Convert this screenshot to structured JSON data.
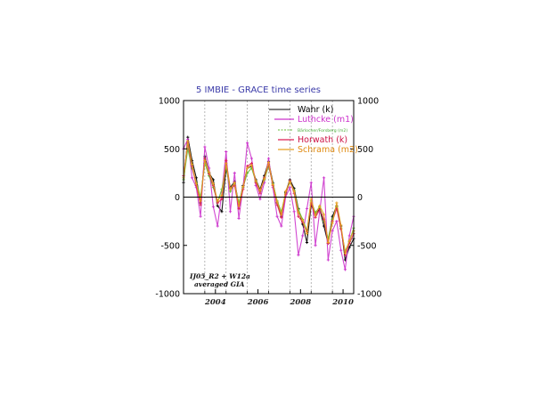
{
  "chart_data": {
    "type": "line",
    "title": "5 IMBIE - GRACE time series",
    "xlabel": "",
    "ylabel": "",
    "xlim": [
      2003.0,
      2011.0
    ],
    "ylim": [
      -1000,
      1000
    ],
    "x_ticks": [
      "2004",
      "2006",
      "2008",
      "2010"
    ],
    "y_ticks_left": [
      "1000",
      "500",
      "0",
      "-500",
      "-1000"
    ],
    "y_ticks_right": [
      "1000",
      "500",
      "0",
      "-500",
      "-1000"
    ],
    "grid": "vertical dashed lines at year boundaries",
    "legend_position": "top-right",
    "annotation": [
      "IJ05_R2 + W12a",
      "averaged GIA"
    ],
    "x": [
      2003.0,
      2003.2,
      2003.4,
      2003.6,
      2003.8,
      2004.0,
      2004.2,
      2004.4,
      2004.6,
      2004.8,
      2005.0,
      2005.2,
      2005.4,
      2005.6,
      2005.8,
      2006.0,
      2006.2,
      2006.4,
      2006.6,
      2006.8,
      2007.0,
      2007.2,
      2007.4,
      2007.6,
      2007.8,
      2008.0,
      2008.2,
      2008.4,
      2008.6,
      2008.8,
      2009.0,
      2009.2,
      2009.4,
      2009.6,
      2009.8,
      2010.0,
      2010.2,
      2010.4,
      2010.6,
      2010.8,
      2011.0
    ],
    "series": [
      {
        "name": "Wahr (k)",
        "color": "#000000",
        "values": [
          150,
          620,
          380,
          200,
          -60,
          420,
          250,
          180,
          -90,
          -150,
          300,
          100,
          160,
          -80,
          120,
          300,
          320,
          180,
          80,
          220,
          370,
          150,
          -60,
          -200,
          50,
          180,
          90,
          -120,
          -280,
          -470,
          -80,
          -180,
          -120,
          -300,
          -480,
          -200,
          -90,
          -300,
          -650,
          -520,
          -430
        ]
      },
      {
        "name": "Luthcke (m1)",
        "color": "#cc33cc",
        "values": [
          500,
          600,
          200,
          100,
          -200,
          520,
          300,
          -100,
          -300,
          50,
          470,
          -150,
          250,
          -220,
          100,
          560,
          400,
          120,
          -20,
          150,
          400,
          100,
          -200,
          -300,
          0,
          100,
          -150,
          -600,
          -400,
          -120,
          150,
          -500,
          -150,
          200,
          -650,
          -350,
          -250,
          -550,
          -750,
          -400,
          -200
        ]
      },
      {
        "name": "Bärlocher/Forsberg (m2)",
        "color": "#66bb33",
        "values": [
          180,
          500,
          300,
          150,
          0,
          350,
          220,
          100,
          -50,
          80,
          320,
          60,
          140,
          -60,
          100,
          250,
          300,
          160,
          60,
          180,
          320,
          140,
          -40,
          -150,
          40,
          150,
          70,
          -130,
          -230,
          -350,
          -40,
          -160,
          -100,
          -250,
          -430,
          -230,
          -100,
          -320,
          -560,
          -460,
          -320
        ]
      },
      {
        "name": "Horwath (k)",
        "color": "#dd2255",
        "values": [
          220,
          560,
          320,
          120,
          -80,
          400,
          240,
          120,
          -60,
          -20,
          380,
          90,
          120,
          -120,
          80,
          320,
          350,
          150,
          40,
          200,
          340,
          120,
          -80,
          -210,
          30,
          170,
          40,
          -200,
          -260,
          -360,
          -60,
          -210,
          -130,
          -230,
          -480,
          -250,
          -120,
          -330,
          -600,
          -480,
          -380
        ]
      },
      {
        "name": "Schrama (m2)",
        "color": "#e8a020",
        "values": [
          200,
          580,
          340,
          140,
          -40,
          380,
          260,
          140,
          -40,
          20,
          350,
          80,
          150,
          -90,
          110,
          300,
          330,
          170,
          70,
          190,
          360,
          130,
          -50,
          -180,
          60,
          160,
          60,
          -160,
          -240,
          -380,
          -20,
          -190,
          -90,
          -180,
          -470,
          -270,
          -60,
          -290,
          -580,
          -450,
          -350
        ]
      }
    ]
  }
}
